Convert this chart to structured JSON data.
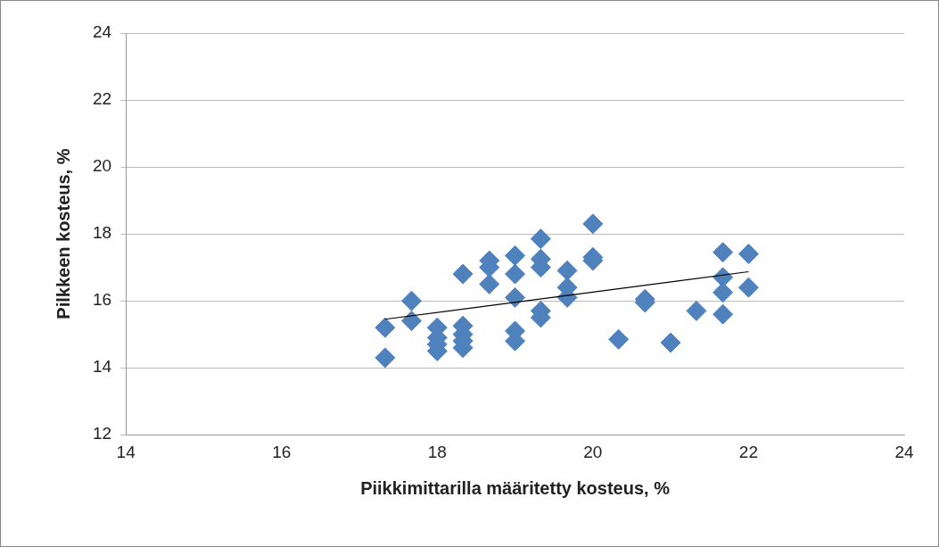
{
  "chart_data": {
    "type": "scatter",
    "xlabel": "Piikkimittarilla määritetty kosteus, %",
    "ylabel": "Pilkkeen kosteus, %",
    "xlim": [
      14,
      24
    ],
    "xticks": [
      14,
      16,
      18,
      20,
      22,
      24
    ],
    "ylim": [
      12,
      24
    ],
    "yticks": [
      12,
      14,
      16,
      18,
      20,
      22,
      24
    ],
    "grid": "y",
    "legend": false,
    "marker": "diamond",
    "series": [
      {
        "color": "#4f81bd",
        "x": [
          17.33,
          17.33,
          17.67,
          17.67,
          18,
          18,
          18,
          18,
          18.33,
          18.33,
          18.33,
          18.33,
          18.33,
          18.67,
          18.67,
          18.67,
          19,
          19,
          19,
          19,
          19,
          19.33,
          19.33,
          19.33,
          19.33,
          19.33,
          19.67,
          19.67,
          19.67,
          20,
          20,
          20,
          20.33,
          20.67,
          20.67,
          21,
          21.33,
          21.67,
          21.67,
          21.67,
          21.67,
          22,
          22
        ],
        "values": [
          15.2,
          14.3,
          16.0,
          15.4,
          15.2,
          14.9,
          14.7,
          14.5,
          16.8,
          15.25,
          15.0,
          14.8,
          14.6,
          17.2,
          17.0,
          16.5,
          17.35,
          16.8,
          16.1,
          15.1,
          14.8,
          17.85,
          17.25,
          17.0,
          15.7,
          15.5,
          16.9,
          16.4,
          16.1,
          18.3,
          17.3,
          17.2,
          14.85,
          16.05,
          15.95,
          14.75,
          15.7,
          17.45,
          16.7,
          16.25,
          15.6,
          17.4,
          16.4
        ]
      },
      {
        "type": "line",
        "color": "#000000",
        "x": [
          17.33,
          22
        ],
        "values": [
          15.45,
          16.87
        ],
        "marker": "none"
      }
    ]
  }
}
